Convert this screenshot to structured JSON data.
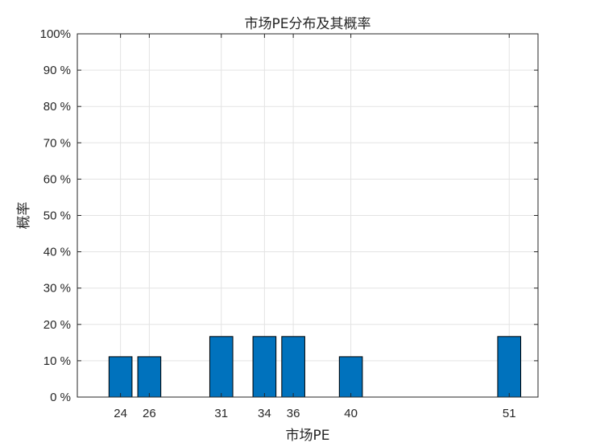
{
  "chart_data": {
    "type": "bar",
    "title": "市场PE分布及其概率",
    "xlabel": "市场PE",
    "ylabel": "概率",
    "x": [
      24,
      26,
      31,
      34,
      36,
      40,
      51
    ],
    "values": [
      11.11,
      11.11,
      16.67,
      16.67,
      16.67,
      11.11,
      16.67
    ],
    "xticks": [
      "24",
      "26",
      "31",
      "34",
      "36",
      "40",
      "51"
    ],
    "xlim": [
      21,
      53
    ],
    "ylim": [
      0,
      100
    ],
    "yticks": [
      0,
      10,
      20,
      30,
      40,
      50,
      60,
      70,
      80,
      90,
      100
    ],
    "ytick_labels": [
      "0 %",
      "10 %",
      "20 %",
      "30 %",
      "40 %",
      "50 %",
      "60 %",
      "70 %",
      "80 %",
      "90 %",
      "100%"
    ],
    "grid": true,
    "bar_color": "#0072BD"
  }
}
